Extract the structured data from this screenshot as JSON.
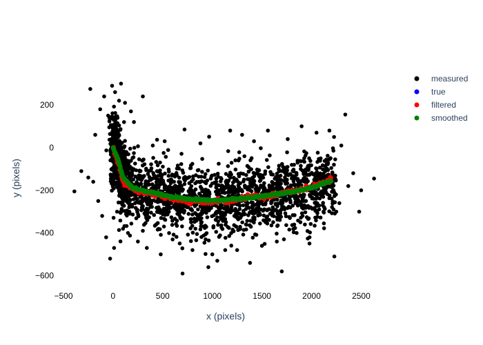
{
  "chart_data": {
    "type": "scatter",
    "title": "",
    "xlabel": "x (pixels)",
    "ylabel": "y (pixels)",
    "xlim": [
      -500,
      2650
    ],
    "ylim": [
      -650,
      320
    ],
    "x_ticks": [
      -500,
      0,
      500,
      1000,
      1500,
      2000,
      2500
    ],
    "y_ticks": [
      200,
      0,
      -200,
      -400,
      -600
    ],
    "x_tick_labels": [
      "−500",
      "0",
      "500",
      "1000",
      "1500",
      "2000",
      "2500"
    ],
    "y_tick_labels": [
      "200",
      "0",
      "−200",
      "−400",
      "−600"
    ],
    "grid": false,
    "legend_position": "top-right",
    "series": [
      {
        "name": "measured",
        "color": "#000000",
        "note": "dense noisy cloud around the true track",
        "points": [
          [
            -390,
            -205
          ],
          [
            -320,
            -110
          ],
          [
            -250,
            -140
          ],
          [
            -230,
            275
          ],
          [
            -200,
            -160
          ],
          [
            -180,
            60
          ],
          [
            -150,
            -250
          ],
          [
            -130,
            180
          ],
          [
            -110,
            -320
          ],
          [
            -90,
            240
          ],
          [
            -70,
            -420
          ],
          [
            -50,
            150
          ],
          [
            -30,
            -520
          ],
          [
            -10,
            290
          ],
          [
            10,
            -470
          ],
          [
            20,
            260
          ],
          [
            40,
            -300
          ],
          [
            60,
            220
          ],
          [
            80,
            300
          ],
          [
            100,
            -380
          ],
          [
            120,
            210
          ],
          [
            150,
            -400
          ],
          [
            180,
            170
          ],
          [
            210,
            120
          ],
          [
            250,
            -440
          ],
          [
            300,
            240
          ],
          [
            340,
            -470
          ],
          [
            400,
            10
          ],
          [
            480,
            -500
          ],
          [
            520,
            30
          ],
          [
            600,
            -430
          ],
          [
            700,
            -590
          ],
          [
            720,
            85
          ],
          [
            800,
            -480
          ],
          [
            880,
            20
          ],
          [
            960,
            -560
          ],
          [
            1000,
            -500
          ],
          [
            1050,
            -530
          ],
          [
            1130,
            -480
          ],
          [
            1180,
            80
          ],
          [
            1250,
            -480
          ],
          [
            1300,
            60
          ],
          [
            1380,
            -540
          ],
          [
            1420,
            30
          ],
          [
            1500,
            -460
          ],
          [
            1560,
            80
          ],
          [
            1650,
            -440
          ],
          [
            1700,
            -580
          ],
          [
            1760,
            40
          ],
          [
            1850,
            -400
          ],
          [
            1900,
            100
          ],
          [
            1980,
            -420
          ],
          [
            2050,
            70
          ],
          [
            2120,
            -300
          ],
          [
            2180,
            80
          ],
          [
            2230,
            -510
          ],
          [
            2280,
            -260
          ],
          [
            2340,
            155
          ],
          [
            2370,
            -180
          ],
          [
            2630,
            -145
          ],
          [
            2480,
            -300
          ],
          [
            2500,
            -200
          ],
          [
            2420,
            -120
          ],
          [
            2300,
            10
          ]
        ]
      },
      {
        "name": "true",
        "color": "#0000ff",
        "points": [
          [
            0,
            0
          ],
          [
            50,
            -60
          ],
          [
            100,
            -150
          ],
          [
            200,
            -195
          ],
          [
            400,
            -215
          ],
          [
            600,
            -235
          ],
          [
            800,
            -245
          ],
          [
            1000,
            -250
          ],
          [
            1200,
            -245
          ],
          [
            1400,
            -235
          ],
          [
            1600,
            -225
          ],
          [
            1800,
            -210
          ],
          [
            2000,
            -190
          ],
          [
            2200,
            -155
          ]
        ]
      },
      {
        "name": "filtered",
        "color": "#ff0000",
        "points": [
          [
            0,
            0
          ],
          [
            50,
            -70
          ],
          [
            100,
            -160
          ],
          [
            200,
            -200
          ],
          [
            400,
            -215
          ],
          [
            600,
            -240
          ],
          [
            800,
            -250
          ],
          [
            1000,
            -255
          ],
          [
            1200,
            -245
          ],
          [
            1400,
            -230
          ],
          [
            1600,
            -225
          ],
          [
            1800,
            -205
          ],
          [
            2000,
            -185
          ],
          [
            2200,
            -150
          ]
        ]
      },
      {
        "name": "smoothed",
        "color": "#008000",
        "points": [
          [
            0,
            0
          ],
          [
            50,
            -55
          ],
          [
            100,
            -140
          ],
          [
            200,
            -190
          ],
          [
            400,
            -212
          ],
          [
            600,
            -232
          ],
          [
            800,
            -243
          ],
          [
            1000,
            -248
          ],
          [
            1200,
            -243
          ],
          [
            1400,
            -233
          ],
          [
            1600,
            -222
          ],
          [
            1800,
            -208
          ],
          [
            2000,
            -188
          ],
          [
            2200,
            -155
          ]
        ]
      }
    ]
  }
}
